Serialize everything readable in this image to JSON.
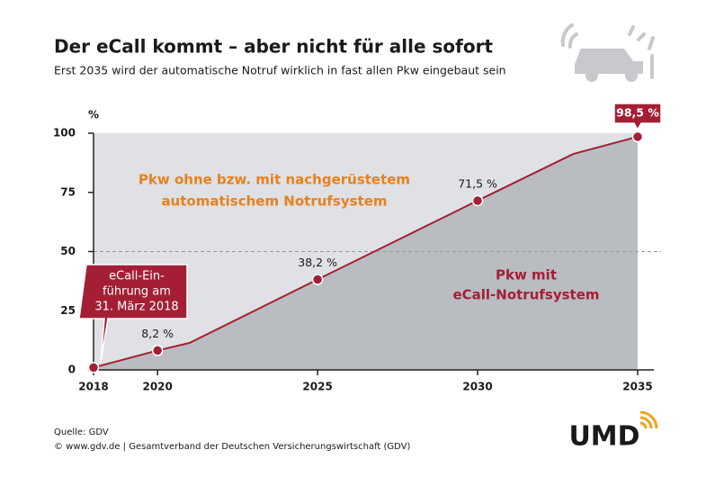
{
  "chart_data": {
    "type": "area",
    "title": "Der eCall kommt – aber nicht für alle sofort",
    "subtitle": "Erst 2035 wird der automatische Notruf wirklich in fast allen Pkw eingebaut sein",
    "y_label": "%",
    "x": [
      2018,
      2020,
      2021,
      2025,
      2030,
      2033,
      2035
    ],
    "series": [
      {
        "name": "Pkw mit eCall-Notrufsystem",
        "color": "#a41f35",
        "values": [
          1,
          8.2,
          11.4,
          38.2,
          71.5,
          91.3,
          98.5
        ],
        "value_labels": [
          null,
          "8,2 %",
          null,
          "38,2 %",
          "71,5 %",
          null,
          "98,5 %"
        ],
        "markers": [
          true,
          true,
          false,
          true,
          true,
          false,
          true
        ]
      }
    ],
    "area_labels": {
      "below": [
        "Pkw mit",
        "eCall-Notrufsystem"
      ],
      "above": [
        "Pkw ohne bzw. mit nachgerüstetem",
        "automatischem Notrufsystem"
      ]
    },
    "callout": [
      "eCall-Ein-",
      "führung am",
      "31. März 2018"
    ],
    "xlim": [
      2018,
      2035
    ],
    "xticks": [
      2018,
      2020,
      2025,
      2030,
      2035
    ],
    "ylim": [
      0,
      100
    ],
    "yticks": [
      0,
      25,
      50,
      75,
      100
    ],
    "reference_line": 50,
    "source": "Quelle: GDV",
    "copyright": "© www.gdv.de | Gesamtverband der Deutschen Versicherungswirtschaft (GDV)",
    "logo": "UMD"
  }
}
